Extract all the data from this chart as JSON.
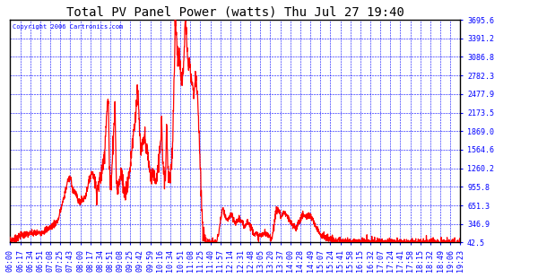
{
  "title": "Total PV Panel Power (watts) Thu Jul 27 19:40",
  "copyright": "Copyright 2006 Cartronics.com",
  "bg_color": "#FFFFFF",
  "line_color": "#FF0000",
  "grid_color": "#0000FF",
  "tick_label_color": "#0000FF",
  "title_color": "#000000",
  "copyright_color": "#0000FF",
  "ylim": [
    42.5,
    3695.6
  ],
  "yticks": [
    42.5,
    346.9,
    651.3,
    955.8,
    1260.2,
    1564.6,
    1869.0,
    2173.5,
    2477.9,
    2782.3,
    3086.8,
    3391.2,
    3695.6
  ],
  "x_labels": [
    "06:00",
    "06:17",
    "06:34",
    "06:51",
    "07:08",
    "07:25",
    "07:43",
    "08:00",
    "08:17",
    "08:34",
    "08:51",
    "09:08",
    "09:25",
    "09:42",
    "09:59",
    "10:16",
    "10:34",
    "10:51",
    "11:08",
    "11:25",
    "11:40",
    "11:57",
    "12:14",
    "12:31",
    "12:48",
    "13:05",
    "13:20",
    "13:37",
    "14:00",
    "14:28",
    "14:49",
    "15:07",
    "15:24",
    "15:41",
    "15:58",
    "16:15",
    "16:32",
    "17:07",
    "17:24",
    "17:41",
    "17:58",
    "18:15",
    "18:32",
    "18:49",
    "19:06",
    "19:23"
  ],
  "line_width": 0.9,
  "title_fontsize": 10,
  "tick_fontsize": 6,
  "copyright_fontsize": 5
}
